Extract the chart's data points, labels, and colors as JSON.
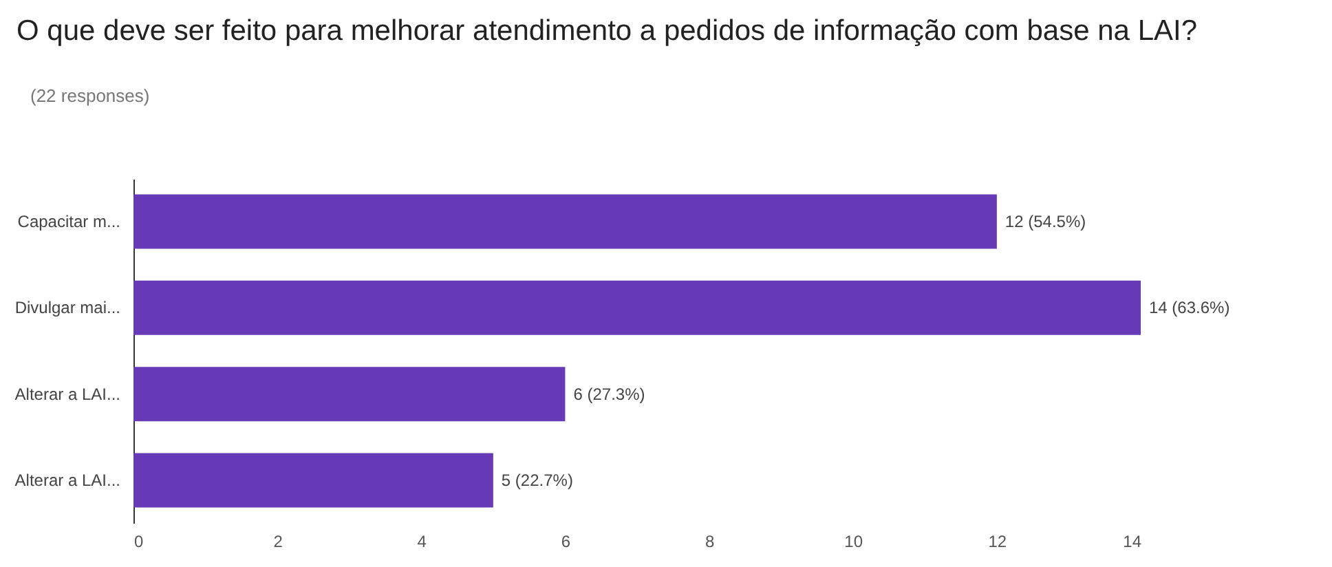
{
  "chart_data": {
    "type": "bar",
    "orientation": "horizontal",
    "title": "O que deve ser feito para melhorar atendimento a pedidos de informação com base na LAI?",
    "subtitle": "(22 responses)",
    "categories": [
      "Capacitar m...",
      "Divulgar mai...",
      "Alterar a LAI...",
      "Alterar a LAI..."
    ],
    "values": [
      12,
      14,
      6,
      5
    ],
    "color": "#673ab7",
    "value_labels": [
      "12 (54.5%)",
      "14 (63.6%)",
      "6 (27.3%)",
      "5 (22.7%)"
    ],
    "xlim": [
      0,
      14
    ],
    "xticks": [
      0,
      2,
      4,
      6,
      8,
      10,
      12,
      14
    ],
    "grid": false
  }
}
